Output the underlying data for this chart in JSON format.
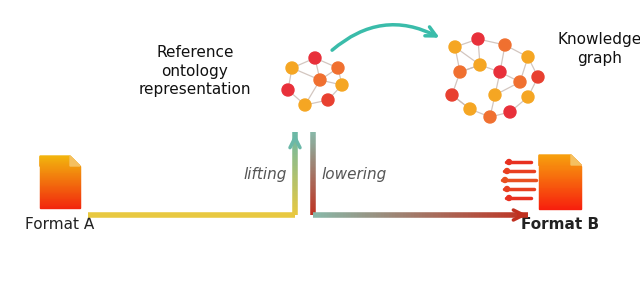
{
  "bg_color": "#ffffff",
  "format_a_label": "Format A",
  "format_b_label": "Format B",
  "ref_ontology_label": "Reference\nontology\nrepresentation",
  "knowledge_graph_label": "Knowledge\ngraph",
  "lifting_label": "lifting",
  "lowering_label": "lowering",
  "node_colors": [
    "#e8303a",
    "#f5a623",
    "#f07030",
    "#f5a623",
    "#e8303a",
    "#f07030"
  ],
  "edge_color_graph": "#c8b8b0",
  "arrow_teal": "#3abcaa",
  "lift_color_bottom": "#e8c840",
  "lift_color_top": "#6ab8a8",
  "lower_color_top": "#88b8a8",
  "lower_color_bottom": "#c03020",
  "horiz_A_color": "#e8c840",
  "horiz_B_color": "#c03020"
}
